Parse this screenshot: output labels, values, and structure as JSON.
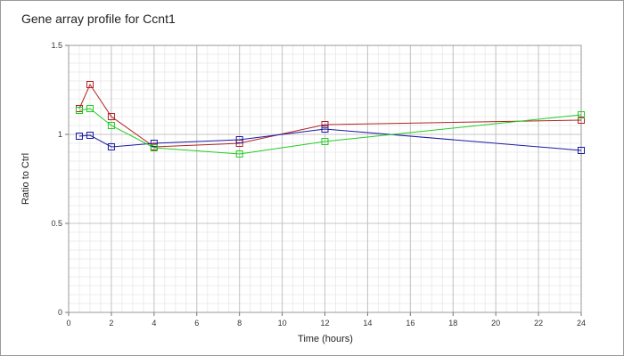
{
  "chart_data": {
    "type": "line",
    "title": "Gene array profile for Ccnt1",
    "xlabel": "Time (hours)",
    "ylabel": "Ratio to Ctrl",
    "xlim": [
      0,
      24
    ],
    "ylim": [
      0,
      1.5
    ],
    "x_ticks": [
      0,
      2,
      4,
      6,
      8,
      10,
      12,
      14,
      16,
      18,
      20,
      22,
      24
    ],
    "y_ticks": [
      0,
      0.5,
      1,
      1.5
    ],
    "y_tick_labels": [
      "0",
      "0.5",
      "1",
      "1.5"
    ],
    "x_minor_step": 0.5,
    "y_minor_step": 0.05,
    "grid": true,
    "marker": "square",
    "series": [
      {
        "color": "#b22222",
        "x": [
          0.5,
          1,
          2,
          4,
          8,
          12,
          24
        ],
        "y": [
          1.145,
          1.28,
          1.1,
          0.93,
          0.95,
          1.055,
          1.08
        ]
      },
      {
        "color": "#1a1aa6",
        "x": [
          0.5,
          1,
          2,
          4,
          8,
          12,
          24
        ],
        "y": [
          0.99,
          0.995,
          0.93,
          0.95,
          0.97,
          1.03,
          0.91
        ]
      },
      {
        "color": "#22cc22",
        "x": [
          0.5,
          1,
          2,
          4,
          8,
          12,
          24
        ],
        "y": [
          1.135,
          1.145,
          1.05,
          0.925,
          0.89,
          0.96,
          1.11
        ]
      }
    ]
  }
}
